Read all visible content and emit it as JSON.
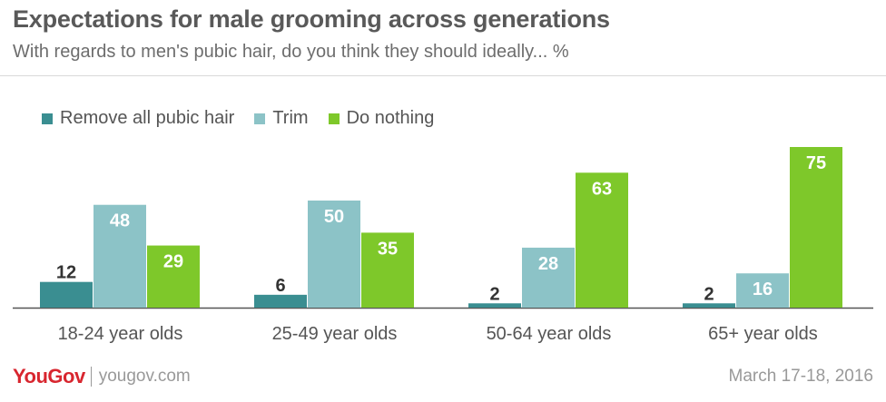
{
  "title": "Expectations for male grooming across generations",
  "subtitle": "With regards to men's pubic hair, do you think they should ideally... %",
  "footer": {
    "logo": "YouGov",
    "site": "yougov.com",
    "date": "March 17-18, 2016"
  },
  "colors": {
    "remove": "#3a8e91",
    "trim": "#8cc3c7",
    "nothing": "#7ec82a",
    "axis": "#555555",
    "label_dark": "#333333",
    "label_light": "#ffffff"
  },
  "chart_data": {
    "type": "bar",
    "title": "Expectations for male grooming across generations",
    "subtitle": "With regards to men's pubic hair, do you think they should ideally... %",
    "categories": [
      "18-24 year olds",
      "25-49 year olds",
      "50-64 year olds",
      "65+ year olds"
    ],
    "series": [
      {
        "name": "Remove all pubic hair",
        "values": [
          12,
          6,
          2,
          2
        ]
      },
      {
        "name": "Trim",
        "values": [
          48,
          50,
          28,
          16
        ]
      },
      {
        "name": "Do nothing",
        "values": [
          29,
          35,
          63,
          75
        ]
      }
    ],
    "ylim": [
      0,
      80
    ],
    "grid": false,
    "legend": "top-left"
  }
}
